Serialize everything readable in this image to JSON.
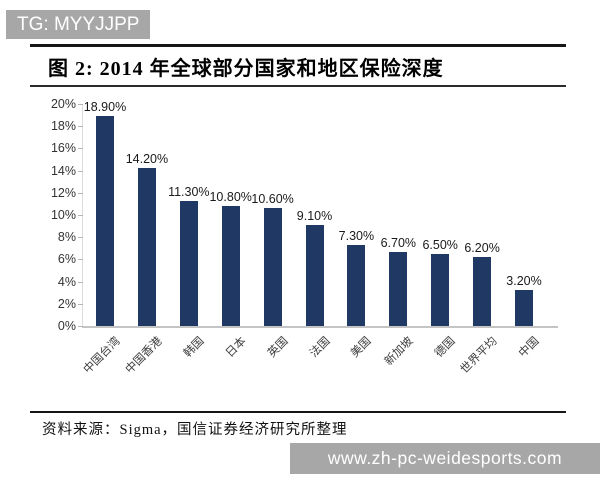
{
  "watermarks": {
    "top": "TG: MYYJJPP",
    "bottom": "www.zh-pc-weidesports.com"
  },
  "figure": {
    "title": "图 2: 2014 年全球部分国家和地区保险深度",
    "source": "资料来源：Sigma，国信证券经济研究所整理"
  },
  "colors": {
    "bar": "#1F3864",
    "banner": "#a7a7a7",
    "axis_text": "#333333"
  },
  "chart_data": {
    "type": "bar",
    "title": "2014 年全球部分国家和地区保险深度",
    "categories": [
      "中国台湾",
      "中国香港",
      "韩国",
      "日本",
      "英国",
      "法国",
      "美国",
      "新加坡",
      "德国",
      "世界平均",
      "中国"
    ],
    "values": [
      18.9,
      14.2,
      11.3,
      10.8,
      10.6,
      9.1,
      7.3,
      6.7,
      6.5,
      6.2,
      3.2
    ],
    "data_labels": [
      "18.90%",
      "14.20%",
      "11.30%",
      "10.80%",
      "10.60%",
      "9.10%",
      "7.30%",
      "6.70%",
      "6.50%",
      "6.20%",
      "3.20%"
    ],
    "xlabel": "",
    "ylabel": "",
    "ylim": [
      0,
      20
    ],
    "ytick_step": 2,
    "ytick_labels": [
      "0%",
      "2%",
      "4%",
      "6%",
      "8%",
      "10%",
      "12%",
      "14%",
      "16%",
      "18%",
      "20%"
    ],
    "grid": false,
    "legend": null,
    "bar_color": "#1F3864"
  }
}
